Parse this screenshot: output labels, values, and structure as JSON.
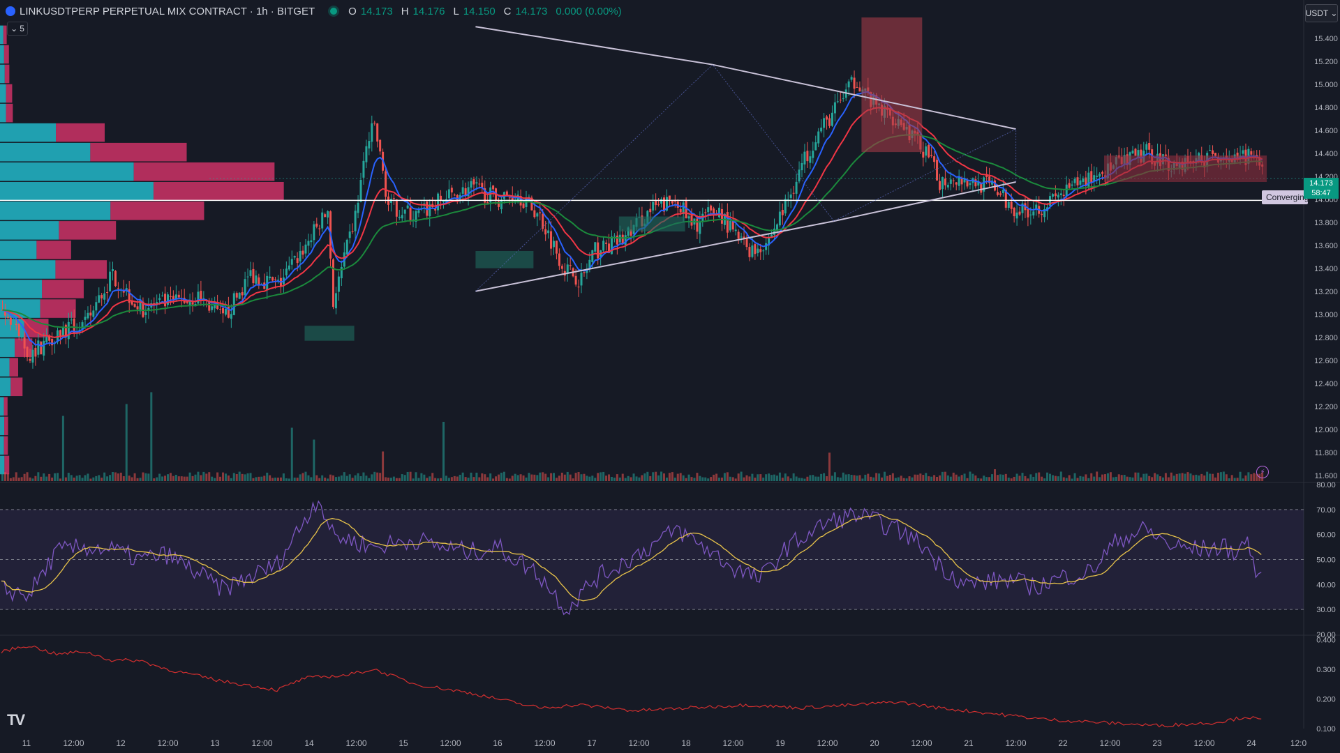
{
  "header": {
    "title": "LINKUSDTPERP PERPETUAL MIX CONTRACT · 1h · BITGET",
    "ohlc": [
      {
        "k": "O",
        "v": "14.173"
      },
      {
        "k": "H",
        "v": "14.176"
      },
      {
        "k": "L",
        "v": "14.150"
      },
      {
        "k": "C",
        "v": "14.173"
      }
    ],
    "change": "0.000 (0.00%)",
    "collapse_label": "5"
  },
  "currency_button": "USDT",
  "price_tag": {
    "price": "14.173",
    "countdown": "58:47"
  },
  "converging_label": "Converging",
  "alert_icon": "lightning-icon",
  "logo_text": "TV",
  "colors": {
    "bg": "#161a25",
    "up": "#26a69a",
    "down": "#ef5350",
    "ema_fast": "#2962ff",
    "ema_mid": "#f23645",
    "ema_slow": "#1b8a3c",
    "rsi": "#7e57c2",
    "rsi_ma": "#e8c34a",
    "lower": "#d32f2f",
    "pattern": "#c9c2d8"
  },
  "chart_data": [
    {
      "type": "candlestick",
      "pane": "price",
      "yticks": [
        "15.400",
        "15.200",
        "15.000",
        "14.800",
        "14.600",
        "14.400",
        "14.200",
        "14.000",
        "13.800",
        "13.600",
        "13.400",
        "13.200",
        "13.000",
        "12.800",
        "12.600",
        "12.400",
        "12.200",
        "12.000",
        "11.800",
        "11.600"
      ],
      "ylim": [
        11.55,
        15.55
      ],
      "xticks": [
        "11",
        "12:00",
        "12",
        "12:00",
        "13",
        "12:00",
        "14",
        "12:00",
        "15",
        "12:00",
        "16",
        "12:00",
        "17",
        "12:00",
        "18",
        "12:00",
        "19",
        "12:00",
        "20",
        "12:00",
        "21",
        "12:00",
        "22",
        "12:00",
        "23",
        "12:00",
        "24",
        "12:0"
      ],
      "anchors": [
        [
          0,
          13.05
        ],
        [
          10,
          12.65
        ],
        [
          20,
          12.85
        ],
        [
          30,
          12.9
        ],
        [
          40,
          13.35
        ],
        [
          50,
          13.05
        ],
        [
          60,
          13.1
        ],
        [
          72,
          13.15
        ],
        [
          80,
          12.95
        ],
        [
          90,
          13.35
        ],
        [
          100,
          13.25
        ],
        [
          110,
          13.6
        ],
        [
          118,
          13.9
        ],
        [
          120,
          13.1
        ],
        [
          128,
          13.85
        ],
        [
          132,
          14.45
        ],
        [
          135,
          14.65
        ],
        [
          140,
          13.95
        ],
        [
          150,
          13.85
        ],
        [
          160,
          14.0
        ],
        [
          170,
          14.1
        ],
        [
          180,
          14.0
        ],
        [
          187,
          14.05
        ],
        [
          195,
          13.85
        ],
        [
          204,
          13.4
        ],
        [
          210,
          13.3
        ],
        [
          215,
          13.55
        ],
        [
          225,
          13.65
        ],
        [
          235,
          13.9
        ],
        [
          245,
          14.0
        ],
        [
          250,
          13.75
        ],
        [
          255,
          13.85
        ],
        [
          260,
          13.9
        ],
        [
          265,
          13.7
        ],
        [
          272,
          13.55
        ],
        [
          278,
          13.65
        ],
        [
          285,
          14.0
        ],
        [
          290,
          14.3
        ],
        [
          295,
          14.55
        ],
        [
          300,
          14.7
        ],
        [
          305,
          14.9
        ],
        [
          310,
          15.05
        ],
        [
          315,
          14.85
        ],
        [
          320,
          14.75
        ],
        [
          325,
          14.7
        ],
        [
          330,
          14.55
        ],
        [
          335,
          14.4
        ],
        [
          340,
          14.15
        ],
        [
          345,
          14.2
        ],
        [
          352,
          14.15
        ],
        [
          360,
          14.1
        ],
        [
          365,
          13.95
        ],
        [
          370,
          13.9
        ],
        [
          378,
          13.95
        ],
        [
          385,
          14.05
        ],
        [
          395,
          14.2
        ],
        [
          405,
          14.3
        ],
        [
          415,
          14.4
        ],
        [
          425,
          14.3
        ],
        [
          435,
          14.35
        ],
        [
          443,
          14.4
        ],
        [
          448,
          14.3
        ],
        [
          452,
          14.4
        ],
        [
          456,
          14.25
        ]
      ],
      "volume_spikes": [
        [
          22,
          0.55
        ],
        [
          45,
          0.65
        ],
        [
          54,
          0.75
        ],
        [
          105,
          0.45
        ],
        [
          113,
          0.35
        ],
        [
          138,
          0.25
        ],
        [
          160,
          0.5
        ],
        [
          300,
          0.24
        ],
        [
          360,
          0.1
        ]
      ]
    },
    {
      "type": "line",
      "pane": "rsi",
      "yticks": [
        "80.00",
        "70.00",
        "60.00",
        "50.00",
        "40.00",
        "30.00",
        "20.00"
      ],
      "ylim": [
        20,
        80
      ],
      "bands": [
        30,
        50,
        70
      ],
      "anchors": [
        [
          0,
          38
        ],
        [
          10,
          36
        ],
        [
          20,
          53
        ],
        [
          30,
          55
        ],
        [
          40,
          54
        ],
        [
          50,
          50
        ],
        [
          60,
          52
        ],
        [
          72,
          44
        ],
        [
          80,
          38
        ],
        [
          100,
          48
        ],
        [
          110,
          66
        ],
        [
          115,
          75
        ],
        [
          120,
          60
        ],
        [
          135,
          55
        ],
        [
          150,
          58
        ],
        [
          160,
          55
        ],
        [
          170,
          53
        ],
        [
          180,
          55
        ],
        [
          195,
          44
        ],
        [
          205,
          30
        ],
        [
          215,
          42
        ],
        [
          235,
          55
        ],
        [
          245,
          62
        ],
        [
          255,
          55
        ],
        [
          265,
          47
        ],
        [
          275,
          42
        ],
        [
          285,
          55
        ],
        [
          300,
          65
        ],
        [
          310,
          68
        ],
        [
          325,
          62
        ],
        [
          335,
          55
        ],
        [
          340,
          48
        ],
        [
          350,
          40
        ],
        [
          365,
          42
        ],
        [
          375,
          39
        ],
        [
          385,
          43
        ],
        [
          395,
          45
        ],
        [
          405,
          58
        ],
        [
          415,
          62
        ],
        [
          425,
          55
        ],
        [
          435,
          54
        ],
        [
          443,
          55
        ],
        [
          448,
          53
        ],
        [
          452,
          58
        ],
        [
          456,
          41
        ]
      ]
    },
    {
      "type": "line",
      "pane": "lower",
      "yticks": [
        "0.400",
        "0.300",
        "0.200",
        "0.100"
      ],
      "ylim": [
        0.1,
        0.41
      ],
      "anchors": [
        [
          0,
          0.36
        ],
        [
          10,
          0.38
        ],
        [
          20,
          0.35
        ],
        [
          30,
          0.36
        ],
        [
          40,
          0.33
        ],
        [
          50,
          0.33
        ],
        [
          60,
          0.3
        ],
        [
          70,
          0.28
        ],
        [
          80,
          0.26
        ],
        [
          100,
          0.23
        ],
        [
          110,
          0.27
        ],
        [
          125,
          0.28
        ],
        [
          135,
          0.3
        ],
        [
          150,
          0.25
        ],
        [
          170,
          0.22
        ],
        [
          180,
          0.2
        ],
        [
          195,
          0.17
        ],
        [
          210,
          0.18
        ],
        [
          230,
          0.16
        ],
        [
          250,
          0.17
        ],
        [
          270,
          0.18
        ],
        [
          290,
          0.17
        ],
        [
          310,
          0.18
        ],
        [
          325,
          0.19
        ],
        [
          340,
          0.17
        ],
        [
          360,
          0.15
        ],
        [
          380,
          0.13
        ],
        [
          400,
          0.12
        ],
        [
          420,
          0.11
        ],
        [
          440,
          0.12
        ],
        [
          452,
          0.14
        ],
        [
          456,
          0.13
        ]
      ]
    }
  ]
}
